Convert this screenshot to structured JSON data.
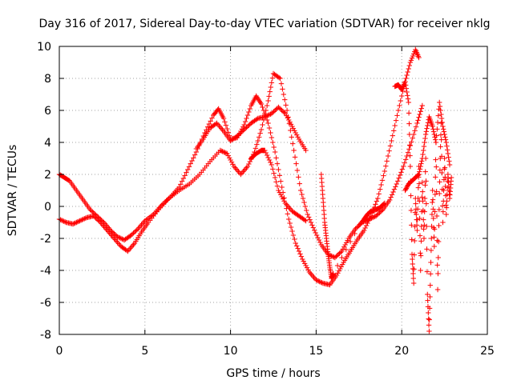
{
  "chart_data": {
    "type": "scatter",
    "title": "Day 316 of 2017, Sidereal Day-to-day VTEC variation (SDTVAR) for receiver nklg",
    "xlabel": "GPS time / hours",
    "ylabel": "SDTVAR / TECUs",
    "xlim": [
      0,
      25
    ],
    "ylim": [
      -8,
      10
    ],
    "x_ticks": [
      0,
      5,
      10,
      15,
      20,
      25
    ],
    "y_ticks": [
      -8,
      -6,
      -4,
      -2,
      0,
      2,
      4,
      6,
      8,
      10
    ],
    "grid": true,
    "legend": "none",
    "marker": "plus",
    "color": "#ff0000",
    "series": [
      {
        "x": [
          0.0,
          0.3,
          0.6,
          1.0,
          1.4,
          1.8,
          2.2,
          2.6,
          3.0,
          3.4,
          3.8,
          4.2,
          4.6,
          5.0,
          5.5,
          6.0,
          6.5,
          7.0,
          7.5,
          8.0,
          8.5,
          9.0,
          9.3,
          9.6,
          10.0,
          10.4,
          10.8,
          11.2,
          11.5,
          11.8,
          12.2,
          12.6,
          13.0,
          13.4,
          13.8,
          14.2,
          14.6,
          15.0,
          15.4,
          15.8,
          16.2,
          16.6,
          17.0,
          17.4,
          17.8,
          18.2,
          18.6,
          19.0,
          19.4,
          19.8,
          20.2,
          20.5,
          20.8,
          21.0
        ],
        "y": [
          2.0,
          1.8,
          1.6,
          1.0,
          0.4,
          -0.2,
          -0.6,
          -1.0,
          -1.5,
          -1.9,
          -2.1,
          -1.8,
          -1.4,
          -0.9,
          -0.5,
          0.1,
          0.6,
          1.2,
          2.3,
          3.4,
          4.6,
          5.7,
          6.1,
          5.5,
          4.2,
          4.3,
          5.1,
          6.3,
          6.9,
          6.4,
          5.2,
          3.4,
          1.2,
          -0.8,
          -2.3,
          -3.3,
          -4.1,
          -4.6,
          -4.8,
          -4.9,
          -4.3,
          -3.5,
          -2.8,
          -2.1,
          -1.5,
          -0.6,
          0.5,
          2.2,
          4.1,
          6.0,
          7.8,
          9.0,
          9.8,
          9.3
        ]
      },
      {
        "x": [
          0.0,
          0.4,
          0.8,
          1.2,
          1.6,
          2.0,
          2.4,
          2.8,
          3.2,
          3.6,
          4.0,
          4.4,
          4.8,
          5.2,
          5.8,
          6.4,
          7.0,
          7.6,
          8.2,
          8.8,
          9.4,
          9.8,
          10.2,
          10.6,
          11.0,
          11.4,
          11.8,
          12.2,
          12.5,
          12.9,
          13.3,
          13.7,
          14.1,
          14.5,
          14.9,
          15.3,
          15.7,
          16.1,
          16.5,
          16.9,
          17.3,
          17.7,
          18.1,
          18.5,
          18.9,
          19.3,
          19.7,
          20.1,
          20.5,
          20.9,
          21.2
        ],
        "y": [
          -0.8,
          -1.0,
          -1.1,
          -0.9,
          -0.7,
          -0.6,
          -1.0,
          -1.5,
          -2.0,
          -2.5,
          -2.8,
          -2.3,
          -1.6,
          -1.0,
          -0.2,
          0.5,
          1.0,
          1.4,
          2.0,
          2.8,
          3.5,
          3.3,
          2.5,
          2.0,
          2.5,
          3.4,
          4.8,
          6.6,
          8.3,
          8.0,
          6.0,
          3.5,
          1.0,
          -0.5,
          -1.5,
          -2.4,
          -3.0,
          -3.2,
          -2.8,
          -2.0,
          -1.4,
          -1.0,
          -0.8,
          -0.6,
          -0.2,
          0.4,
          1.4,
          2.5,
          3.8,
          5.2,
          6.3
        ]
      },
      {
        "x": [
          8.0,
          8.4,
          8.8,
          9.2,
          9.6,
          10.0,
          10.4,
          10.8,
          11.2,
          11.6,
          12.0,
          12.4,
          12.8,
          13.2,
          13.6,
          14.0,
          14.4
        ],
        "y": [
          3.6,
          4.2,
          4.9,
          5.2,
          4.7,
          4.1,
          4.4,
          4.8,
          5.2,
          5.5,
          5.6,
          5.8,
          6.2,
          5.8,
          5.0,
          4.2,
          3.5
        ]
      },
      {
        "x": [
          11.2,
          11.5,
          11.8,
          12.0,
          12.4,
          12.8,
          13.2,
          13.6,
          14.0,
          14.4
        ],
        "y": [
          3.0,
          3.3,
          3.5,
          3.5,
          2.6,
          1.0,
          0.2,
          -0.3,
          -0.6,
          -0.9
        ]
      },
      {
        "x": [
          15.3,
          15.4,
          15.5,
          15.6,
          15.7,
          15.8,
          15.9,
          16.0,
          17.5,
          17.8,
          18.0,
          18.2,
          18.5,
          18.7,
          19.0
        ],
        "y": [
          2.0,
          0.5,
          -1.0,
          -2.0,
          -3.0,
          -3.8,
          -4.5,
          -4.2,
          -1.2,
          -0.8,
          -0.5,
          -0.3,
          -0.2,
          -0.1,
          0.2
        ]
      },
      {
        "x": [
          19.6,
          19.8,
          20.0,
          20.2,
          20.4,
          20.5,
          20.6,
          20.7,
          20.8,
          20.9,
          21.0,
          21.1,
          21.2,
          21.3,
          21.4,
          21.5,
          21.6,
          21.7,
          21.8,
          21.9,
          22.0,
          22.1,
          22.2,
          22.3,
          22.4,
          22.5,
          22.6,
          22.7,
          22.8,
          22.9
        ],
        "y": [
          7.5,
          7.6,
          7.3,
          7.8,
          6.5,
          2.5,
          -3.0,
          -4.8,
          0.5,
          -1.5,
          2.5,
          -4.0,
          1.5,
          -2.0,
          3.0,
          -5.5,
          -7.8,
          -3.5,
          1.0,
          -2.5,
          4.0,
          -5.2,
          0.8,
          5.2,
          -1.0,
          3.0,
          -0.5,
          2.0,
          0.5,
          1.8
        ]
      },
      {
        "x": [
          20.2,
          20.4,
          20.6,
          20.8,
          21.0,
          21.2,
          21.4,
          21.6,
          21.8,
          22.0,
          22.2,
          22.4,
          22.6,
          22.8
        ],
        "y": [
          1.0,
          1.4,
          1.6,
          1.8,
          2.0,
          3.0,
          4.5,
          5.6,
          5.0,
          4.0,
          6.5,
          5.0,
          4.0,
          2.6
        ]
      }
    ]
  }
}
